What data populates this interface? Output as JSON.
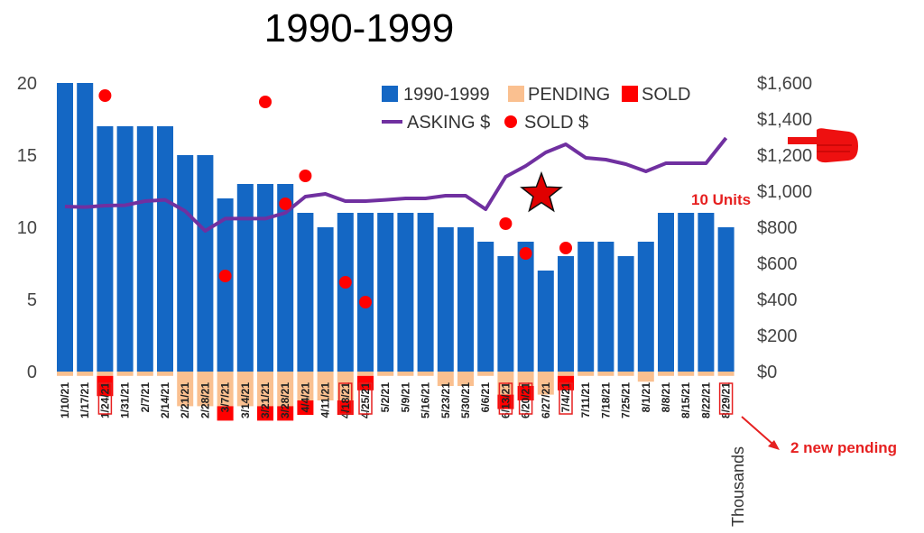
{
  "chart_data": {
    "type": "bar",
    "title": "1990-1999",
    "categories": [
      "1/10/21",
      "1/17/21",
      "1/24/21",
      "1/31/21",
      "2/7/21",
      "2/14/21",
      "2/21/21",
      "2/28/21",
      "3/7/21",
      "3/14/21",
      "3/21/21",
      "3/28/21",
      "4/4/21",
      "4/11/21",
      "4/18/21",
      "4/25/21",
      "5/2/21",
      "5/9/21",
      "5/16/21",
      "5/23/21",
      "5/30/21",
      "6/6/21",
      "6/13/21",
      "6/20/21",
      "6/27/21",
      "7/4/21",
      "7/11/21",
      "7/18/21",
      "7/25/21",
      "8/1/21",
      "8/8/21",
      "8/15/21",
      "8/22/21",
      "8/29/21"
    ],
    "series": [
      {
        "name": "1990-1999",
        "type": "bar",
        "axis": "left",
        "color": "#1467C4",
        "values": [
          20,
          20,
          17,
          17,
          17,
          17,
          15,
          15,
          12,
          13,
          13,
          13,
          11,
          10,
          11,
          11,
          11,
          11,
          11,
          10,
          10,
          9,
          8,
          9,
          7,
          8,
          9,
          9,
          8,
          9,
          11,
          11,
          11,
          10
        ]
      },
      {
        "name": "PENDING",
        "type": "bar",
        "axis": "left",
        "color": "#FAC090",
        "values": [
          -0.3,
          -0.3,
          -0.3,
          -0.3,
          -0.3,
          -0.3,
          -2.4,
          -2.4,
          -2.4,
          -2.4,
          -2.4,
          -2.4,
          -2.0,
          -2.0,
          -2.0,
          -0.3,
          -0.3,
          -0.3,
          -0.3,
          -1.0,
          -1.0,
          -0.3,
          -1.6,
          -1.0,
          -1.6,
          -0.3,
          -0.3,
          -0.3,
          -0.3,
          -0.7,
          -0.3,
          -0.3,
          -0.3,
          -0.3
        ]
      },
      {
        "name": "SOLD",
        "type": "bar",
        "axis": "left",
        "color": "#FF0000",
        "values": [
          0,
          0,
          -1.4,
          0,
          0,
          0,
          0,
          0,
          -1.0,
          0,
          -1.0,
          -1.0,
          -1.0,
          0,
          -1.0,
          -1.0,
          0,
          0,
          0,
          0,
          0,
          0,
          -1.0,
          -1.0,
          0,
          -1.0,
          0,
          0,
          0,
          0,
          0,
          0,
          0,
          0
        ]
      },
      {
        "name": "ASKING $",
        "type": "line",
        "axis": "right",
        "color": "#7030A0",
        "values": [
          915,
          912,
          920,
          922,
          945,
          952,
          890,
          780,
          848,
          848,
          848,
          880,
          970,
          985,
          945,
          945,
          952,
          960,
          960,
          975,
          975,
          900,
          1080,
          1140,
          1215,
          1260,
          1185,
          1175,
          1150,
          1110,
          1155,
          1155,
          1155,
          1295
        ]
      },
      {
        "name": "SOLD $",
        "type": "scatter",
        "axis": "right",
        "color": "#FF0000",
        "values": [
          null,
          null,
          1530,
          null,
          null,
          null,
          null,
          null,
          530,
          null,
          1495,
          930,
          1085,
          null,
          495,
          385,
          null,
          null,
          null,
          null,
          null,
          null,
          820,
          655,
          null,
          685,
          null,
          null,
          null,
          null,
          null,
          null,
          null,
          null
        ]
      }
    ],
    "y_left": {
      "min": 0,
      "max": 20,
      "ticks": [
        "0",
        "5",
        "10",
        "15",
        "20"
      ]
    },
    "y_right": {
      "min": 0,
      "max": 1600,
      "ticks": [
        "$0",
        "$200",
        "$400",
        "$600",
        "$800",
        "$1,000",
        "$1,200",
        "$1,400",
        "$1,600"
      ],
      "unit_label": "Thousands"
    },
    "highlighted_categories": [
      "1/24/21",
      "4/18/21",
      "4/25/21",
      "6/13/21",
      "6/20/21",
      "7/4/21",
      "8/29/21"
    ],
    "legend_placement": "top-center",
    "grid": false,
    "annotations": {
      "units": "10 Units",
      "new_pending": "2 new pending"
    }
  }
}
